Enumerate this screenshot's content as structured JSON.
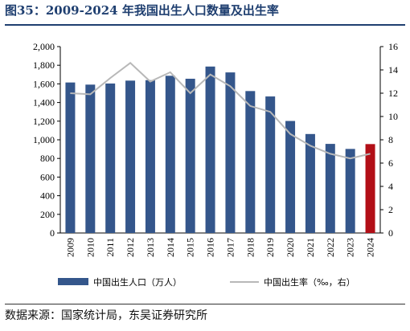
{
  "title": "图35：2009-2024 年我国出生人口数量及出生率",
  "source": "数据来源：国家统计局，东吴证券研究所",
  "colors": {
    "bar": "#34568b",
    "bar_highlight": "#b20f17",
    "line": "#b8b8b8",
    "title": "#1f3f70"
  },
  "chart_data": {
    "type": "bar",
    "categories": [
      "2009",
      "2010",
      "2011",
      "2012",
      "2013",
      "2014",
      "2015",
      "2016",
      "2017",
      "2018",
      "2019",
      "2020",
      "2021",
      "2022",
      "2023",
      "2024"
    ],
    "series": [
      {
        "name": "中国出生人口（万人）",
        "type": "bar",
        "axis": "left",
        "values": [
          1615,
          1592,
          1604,
          1635,
          1640,
          1687,
          1655,
          1786,
          1723,
          1523,
          1465,
          1202,
          1062,
          956,
          902,
          954
        ]
      },
      {
        "name": "中国出生率（‰，右）",
        "type": "line",
        "axis": "right",
        "values": [
          12.0,
          11.9,
          13.3,
          14.6,
          13.0,
          13.8,
          12.0,
          13.6,
          12.6,
          10.9,
          10.4,
          8.5,
          7.5,
          6.8,
          6.4,
          6.8
        ]
      }
    ],
    "highlight_category": "2024",
    "y_left": {
      "ylim": [
        0,
        2000
      ],
      "ticks": [
        "0",
        "200",
        "400",
        "600",
        "800",
        "1,000",
        "1,200",
        "1,400",
        "1,600",
        "1,800",
        "2,000"
      ]
    },
    "y_right": {
      "ylim": [
        0,
        16
      ],
      "ticks": [
        "0",
        "2",
        "4",
        "6",
        "8",
        "10",
        "12",
        "14",
        "16"
      ]
    },
    "grid": false,
    "legend_position": "bottom"
  }
}
